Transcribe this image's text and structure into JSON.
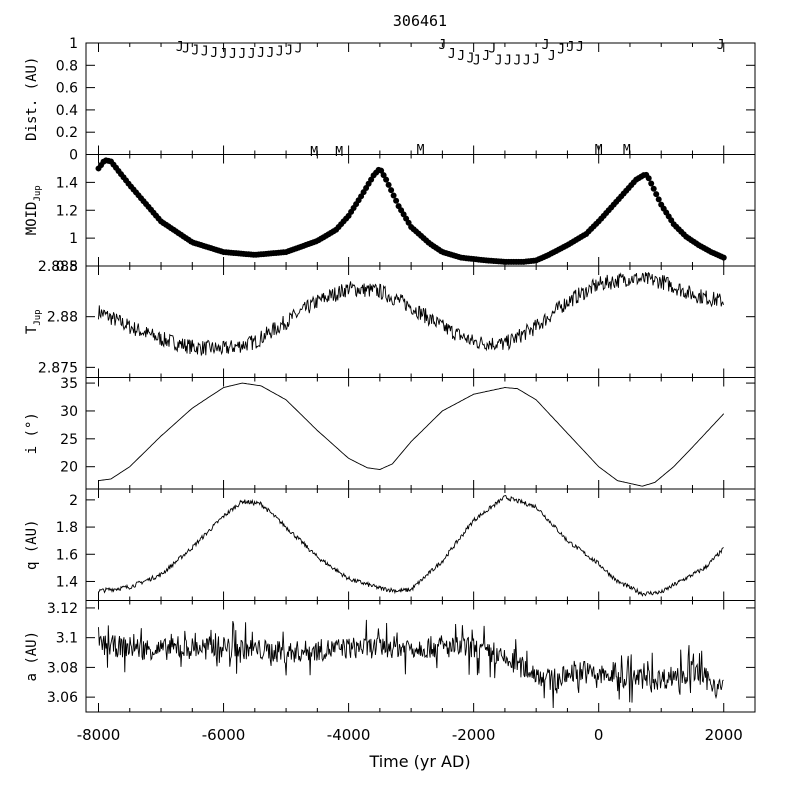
{
  "chart_data": {
    "type": "line",
    "title": "306461",
    "xlabel": "Time (yr AD)",
    "xlim": [
      -8200,
      2500
    ],
    "x_ticks": [
      -8000,
      -6000,
      -4000,
      -2000,
      0,
      2000
    ],
    "grid": false,
    "legend": "none",
    "panels": [
      {
        "id": "dist",
        "ylabel": "Dist. (AU)",
        "ylim": [
          0,
          1
        ],
        "y_ticks": [
          0,
          0.2,
          0.4,
          0.6,
          0.8,
          1
        ],
        "markers": "letters",
        "points": [
          {
            "t": -6700,
            "d": 0.98,
            "c": "J"
          },
          {
            "t": -6600,
            "d": 0.97,
            "c": "J"
          },
          {
            "t": -6450,
            "d": 0.95,
            "c": "J"
          },
          {
            "t": -6300,
            "d": 0.94,
            "c": "J"
          },
          {
            "t": -6150,
            "d": 0.93,
            "c": "J"
          },
          {
            "t": -6000,
            "d": 0.92,
            "c": "J"
          },
          {
            "t": -5850,
            "d": 0.92,
            "c": "J"
          },
          {
            "t": -5700,
            "d": 0.92,
            "c": "J"
          },
          {
            "t": -5550,
            "d": 0.92,
            "c": "J"
          },
          {
            "t": -5400,
            "d": 0.93,
            "c": "J"
          },
          {
            "t": -5250,
            "d": 0.93,
            "c": "J"
          },
          {
            "t": -5100,
            "d": 0.94,
            "c": "J"
          },
          {
            "t": -4950,
            "d": 0.95,
            "c": "J"
          },
          {
            "t": -4800,
            "d": 0.97,
            "c": "J"
          },
          {
            "t": -2500,
            "d": 1.0,
            "c": "J"
          },
          {
            "t": -2350,
            "d": 0.92,
            "c": "J"
          },
          {
            "t": -2200,
            "d": 0.9,
            "c": "J"
          },
          {
            "t": -2050,
            "d": 0.88,
            "c": "J"
          },
          {
            "t": -1950,
            "d": 0.86,
            "c": "J"
          },
          {
            "t": -1800,
            "d": 0.9,
            "c": "J"
          },
          {
            "t": -1700,
            "d": 0.97,
            "c": "J"
          },
          {
            "t": -1600,
            "d": 0.86,
            "c": "J"
          },
          {
            "t": -1450,
            "d": 0.86,
            "c": "J"
          },
          {
            "t": -1300,
            "d": 0.86,
            "c": "J"
          },
          {
            "t": -1150,
            "d": 0.86,
            "c": "J"
          },
          {
            "t": -1000,
            "d": 0.87,
            "c": "J"
          },
          {
            "t": -850,
            "d": 1.0,
            "c": "J"
          },
          {
            "t": -750,
            "d": 0.9,
            "c": "J"
          },
          {
            "t": -600,
            "d": 0.96,
            "c": "J"
          },
          {
            "t": -450,
            "d": 0.98,
            "c": "J"
          },
          {
            "t": -300,
            "d": 0.98,
            "c": "J"
          },
          {
            "t": 1950,
            "d": 1.0,
            "c": "J"
          },
          {
            "t": -4550,
            "d": 0.04,
            "c": "M"
          },
          {
            "t": -4150,
            "d": 0.04,
            "c": "M"
          },
          {
            "t": -2850,
            "d": 0.06,
            "c": "M"
          },
          {
            "t": 0,
            "d": 0.06,
            "c": "M"
          },
          {
            "t": 450,
            "d": 0.06,
            "c": "M"
          }
        ]
      },
      {
        "id": "moid",
        "ylabel": "MOID",
        "ylabel_sub": "Jup",
        "ylim": [
          0.8,
          1.6
        ],
        "y_ticks": [
          0.8,
          1,
          1.2,
          1.4
        ],
        "markers": "dots",
        "x": [
          -8000,
          -7900,
          -7800,
          -7500,
          -7000,
          -6500,
          -6000,
          -5500,
          -5000,
          -4500,
          -4200,
          -4000,
          -3800,
          -3600,
          -3500,
          -3400,
          -3200,
          -3000,
          -2700,
          -2500,
          -2200,
          -2000,
          -1800,
          -1500,
          -1200,
          -1000,
          -800,
          -500,
          -200,
          0,
          200,
          400,
          600,
          750,
          800,
          1000,
          1200,
          1400,
          1600,
          1800,
          2000
        ],
        "y": [
          1.5,
          1.56,
          1.55,
          1.38,
          1.12,
          0.97,
          0.9,
          0.88,
          0.9,
          0.98,
          1.06,
          1.16,
          1.3,
          1.45,
          1.5,
          1.42,
          1.23,
          1.08,
          0.96,
          0.9,
          0.86,
          0.85,
          0.84,
          0.83,
          0.83,
          0.84,
          0.88,
          0.95,
          1.03,
          1.12,
          1.22,
          1.32,
          1.42,
          1.46,
          1.43,
          1.24,
          1.1,
          1.01,
          0.95,
          0.9,
          0.86
        ]
      },
      {
        "id": "tjup",
        "ylabel": "T",
        "ylabel_sub": "Jup",
        "ylim": [
          2.874,
          2.885
        ],
        "y_ticks": [
          2.875,
          2.88,
          2.885
        ],
        "markers": "line-noisy",
        "x": [
          -8000,
          -7500,
          -7000,
          -6500,
          -6000,
          -5500,
          -5000,
          -4500,
          -4000,
          -3500,
          -3000,
          -2500,
          -2000,
          -1500,
          -1000,
          -500,
          0,
          500,
          1000,
          1500,
          2000
        ],
        "y": [
          2.8805,
          2.879,
          2.8778,
          2.877,
          2.8768,
          2.8775,
          2.8795,
          2.8815,
          2.8828,
          2.8825,
          2.881,
          2.879,
          2.8775,
          2.8773,
          2.879,
          2.8815,
          2.8832,
          2.8838,
          2.8835,
          2.8822,
          2.8815
        ]
      },
      {
        "id": "incl",
        "ylabel": "i (°)",
        "ylim": [
          16,
          36
        ],
        "y_ticks": [
          20,
          25,
          30,
          35
        ],
        "markers": "line",
        "x": [
          -8000,
          -7800,
          -7500,
          -7000,
          -6500,
          -6000,
          -5700,
          -5400,
          -5000,
          -4500,
          -4000,
          -3700,
          -3500,
          -3300,
          -3000,
          -2500,
          -2000,
          -1500,
          -1300,
          -1000,
          -500,
          0,
          300,
          700,
          900,
          1200,
          1500,
          2000
        ],
        "y": [
          17.5,
          17.8,
          20.0,
          25.5,
          30.5,
          34.2,
          35.0,
          34.5,
          32.0,
          26.5,
          21.5,
          19.8,
          19.5,
          20.5,
          24.5,
          30.0,
          33.0,
          34.2,
          34.0,
          32.0,
          26.0,
          20.0,
          17.5,
          16.5,
          17.2,
          20.0,
          23.5,
          29.5
        ]
      },
      {
        "id": "q",
        "ylabel": "q (AU)",
        "ylim": [
          1.26,
          2.08
        ],
        "y_ticks": [
          1.4,
          1.6,
          1.8,
          2
        ],
        "markers": "line-noisy",
        "x": [
          -8000,
          -7500,
          -7000,
          -6500,
          -6000,
          -5700,
          -5400,
          -5000,
          -4500,
          -4000,
          -3500,
          -3200,
          -3000,
          -2500,
          -2000,
          -1500,
          -1000,
          -500,
          0,
          300,
          700,
          1000,
          1300,
          1700,
          2000
        ],
        "y": [
          1.33,
          1.36,
          1.45,
          1.65,
          1.88,
          1.99,
          1.97,
          1.8,
          1.58,
          1.42,
          1.35,
          1.33,
          1.34,
          1.55,
          1.85,
          2.02,
          1.95,
          1.7,
          1.53,
          1.4,
          1.31,
          1.32,
          1.4,
          1.5,
          1.64
        ]
      },
      {
        "id": "a",
        "ylabel": "a (AU)",
        "ylim": [
          3.05,
          3.125
        ],
        "y_ticks": [
          3.06,
          3.08,
          3.1,
          3.12
        ],
        "markers": "line-noisy",
        "x": [
          -8000,
          -7000,
          -6000,
          -5000,
          -4000,
          -3000,
          -2000,
          -1500,
          -1000,
          -700,
          -400,
          0,
          500,
          1000,
          1500,
          2000
        ],
        "y": [
          3.095,
          3.092,
          3.094,
          3.09,
          3.093,
          3.094,
          3.093,
          3.085,
          3.076,
          3.07,
          3.078,
          3.075,
          3.073,
          3.072,
          3.078,
          3.065
        ]
      }
    ]
  }
}
